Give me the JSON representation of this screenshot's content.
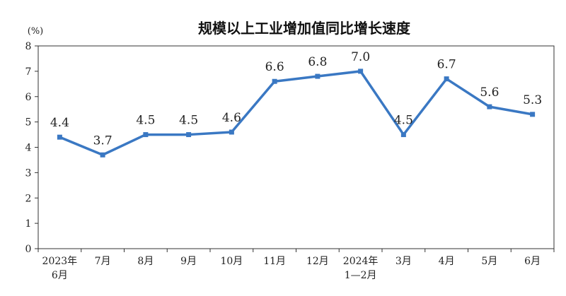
{
  "chart_data": {
    "type": "line",
    "title": "规模以上工业增加值同比增长速度",
    "ylabel": "(%)",
    "xlabel": "",
    "ylim": [
      0,
      8
    ],
    "yticks": [
      0,
      1,
      2,
      3,
      4,
      5,
      6,
      7,
      8
    ],
    "categories": [
      [
        "2023年",
        "6月"
      ],
      [
        "7月"
      ],
      [
        "8月"
      ],
      [
        "9月"
      ],
      [
        "10月"
      ],
      [
        "11月"
      ],
      [
        "12月"
      ],
      [
        "2024年",
        "1—2月"
      ],
      [
        "3月"
      ],
      [
        "4月"
      ],
      [
        "5月"
      ],
      [
        "6月"
      ]
    ],
    "series": [
      {
        "values": [
          4.4,
          3.7,
          4.5,
          4.5,
          4.6,
          6.6,
          6.8,
          7.0,
          4.5,
          6.7,
          5.6,
          5.3
        ],
        "labels": [
          "4.4",
          "3.7",
          "4.5",
          "4.5",
          "4.6",
          "6.6",
          "6.8",
          "7.0",
          "4.5",
          "6.7",
          "5.6",
          "5.3"
        ],
        "color": "#3a78c3"
      }
    ],
    "grid": false,
    "legend": "none"
  }
}
